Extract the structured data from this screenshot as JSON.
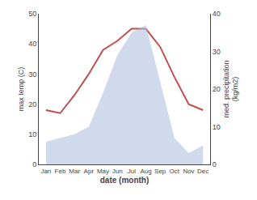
{
  "chart_data": {
    "type": "line",
    "categories": [
      "Jan",
      "Feb",
      "Mar",
      "Apr",
      "May",
      "Jun",
      "Jul",
      "Aug",
      "Sep",
      "Oct",
      "Nov",
      "Dec"
    ],
    "series": [
      {
        "type": "area",
        "axis": "y2",
        "color": "#aabbdd",
        "values": [
          6,
          7,
          8,
          10,
          19,
          29,
          35,
          37,
          22,
          7,
          3,
          5
        ]
      },
      {
        "type": "line",
        "color": "#c0504d",
        "values": [
          18,
          17,
          23,
          30,
          38,
          41,
          45,
          45,
          39,
          29,
          20,
          18
        ]
      }
    ],
    "xlabel": "date (month)",
    "ylabel": "max temp (C)",
    "y2label": "med. precipitation\n(kg/m2)",
    "ylim": [
      0,
      50
    ],
    "yticks": [
      0,
      10,
      20,
      30,
      40,
      50
    ],
    "y2lim": [
      0,
      40
    ],
    "y2ticks": [
      0,
      10,
      20,
      30,
      40
    ],
    "grid": false
  }
}
